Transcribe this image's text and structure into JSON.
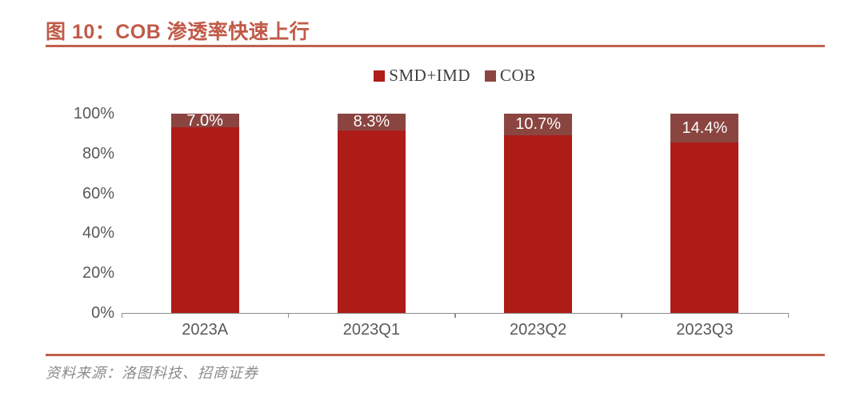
{
  "figure": {
    "title": "图 10：COB 渗透率快速上行",
    "source": "资料来源：洛图科技、招商证券",
    "accent_color": "#C0614E"
  },
  "chart_data": {
    "type": "bar",
    "stacked": true,
    "title": "COB 渗透率快速上行",
    "categories": [
      "2023A",
      "2023Q1",
      "2023Q2",
      "2023Q3"
    ],
    "series": [
      {
        "name": "SMD+IMD",
        "color": "#AE1C18",
        "values": [
          93.0,
          91.7,
          89.3,
          85.6
        ]
      },
      {
        "name": "COB",
        "color": "#8B4541",
        "values": [
          7.0,
          8.3,
          10.7,
          14.4
        ]
      }
    ],
    "data_labels": {
      "series": "COB",
      "values": [
        "7.0%",
        "8.3%",
        "10.7%",
        "14.4%"
      ],
      "color": "#FFFFFF"
    },
    "ylim": [
      0,
      100
    ],
    "y_ticks": [
      "0%",
      "20%",
      "40%",
      "60%",
      "80%",
      "100%"
    ],
    "grid": false,
    "legend_position": "top-center",
    "axis_color": "#8C8C8C",
    "tick_label_color": "#595959"
  }
}
